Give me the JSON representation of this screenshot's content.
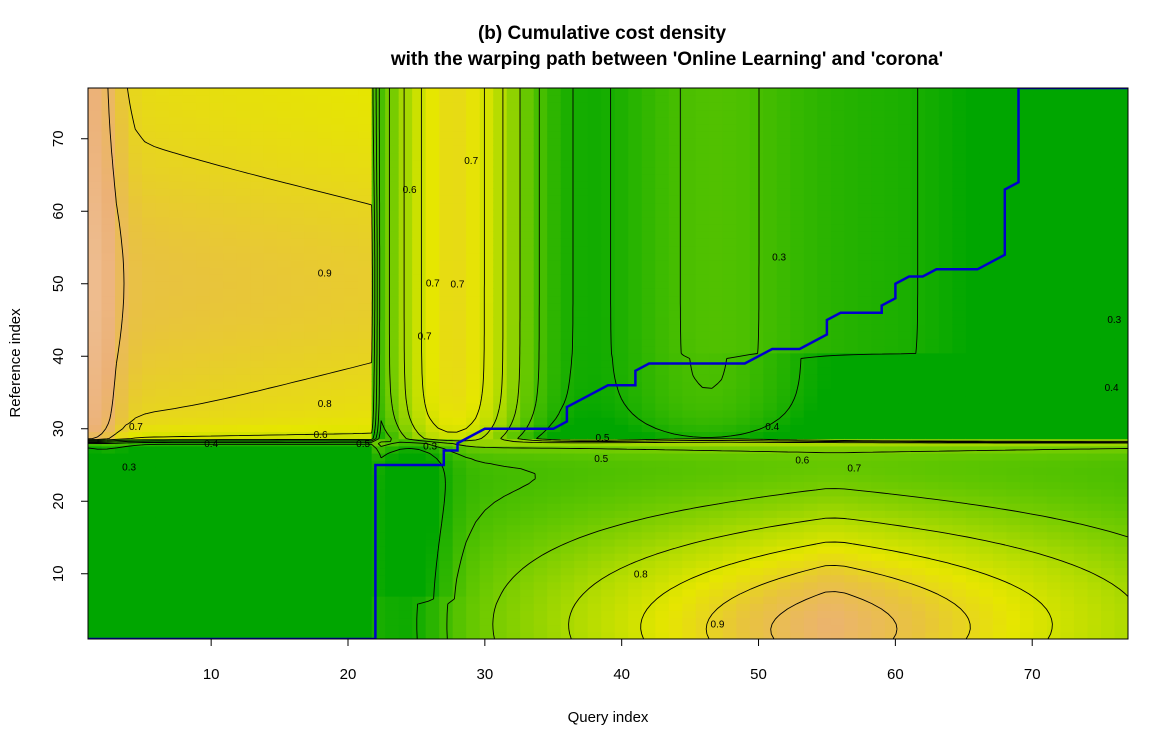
{
  "chart_data": {
    "type": "heatmap",
    "title_line1": "(b) Cumulative cost density",
    "title_line2": "with the warping path between 'Online Learning' and 'corona'",
    "xlabel": "Query index",
    "ylabel": "Reference index",
    "xlim": [
      1,
      77
    ],
    "ylim": [
      1,
      77
    ],
    "x_ticks": [
      10,
      20,
      30,
      40,
      50,
      60,
      70
    ],
    "y_ticks": [
      10,
      20,
      30,
      40,
      50,
      60,
      70
    ],
    "colors": {
      "low": "#00A600",
      "mid": "#E6E600",
      "high": "#ECB176",
      "max": "#F2F2F2",
      "path": "#0000CC"
    },
    "warping_path": [
      [
        1,
        1
      ],
      [
        22,
        1
      ],
      [
        22,
        2
      ],
      [
        22,
        25
      ],
      [
        27,
        25
      ],
      [
        27,
        27
      ],
      [
        28,
        27
      ],
      [
        28,
        28
      ],
      [
        29,
        29
      ],
      [
        30,
        30
      ],
      [
        35,
        30
      ],
      [
        36,
        31
      ],
      [
        36,
        33
      ],
      [
        37,
        34
      ],
      [
        39,
        36
      ],
      [
        41,
        36
      ],
      [
        41,
        38
      ],
      [
        42,
        39
      ],
      [
        49,
        39
      ],
      [
        51,
        41
      ],
      [
        53,
        41
      ],
      [
        55,
        43
      ],
      [
        55,
        45
      ],
      [
        56,
        46
      ],
      [
        59,
        46
      ],
      [
        59,
        47
      ],
      [
        60,
        48
      ],
      [
        60,
        50
      ],
      [
        61,
        51
      ],
      [
        62,
        51
      ],
      [
        63,
        52
      ],
      [
        66,
        52
      ],
      [
        68,
        54
      ],
      [
        68,
        63
      ],
      [
        69,
        64
      ],
      [
        69,
        77
      ],
      [
        77,
        77
      ]
    ],
    "contour_labels": [
      {
        "text": "0.6",
        "x": 24.5,
        "y": 63
      },
      {
        "text": "0.9",
        "x": 18.3,
        "y": 51.5
      },
      {
        "text": "0.8",
        "x": 18.3,
        "y": 33.5
      },
      {
        "text": "0.7",
        "x": 4.5,
        "y": 30.3
      },
      {
        "text": "0.6",
        "x": 18.0,
        "y": 29.2
      },
      {
        "text": "0.5",
        "x": 21.1,
        "y": 28.0
      },
      {
        "text": "0.4",
        "x": 10.0,
        "y": 28.0
      },
      {
        "text": "0.3",
        "x": 26.0,
        "y": 27.6
      },
      {
        "text": "0.3",
        "x": 4.0,
        "y": 24.7
      },
      {
        "text": "0.7",
        "x": 29.0,
        "y": 67.0
      },
      {
        "text": "0.7",
        "x": 26.2,
        "y": 50.1
      },
      {
        "text": "0.7",
        "x": 28.0,
        "y": 50.0
      },
      {
        "text": "0.7",
        "x": 25.6,
        "y": 42.8
      },
      {
        "text": "0.3",
        "x": 51.5,
        "y": 53.7
      },
      {
        "text": "0.3",
        "x": 76.0,
        "y": 45.1
      },
      {
        "text": "0.4",
        "x": 75.8,
        "y": 35.7
      },
      {
        "text": "0.4",
        "x": 51.0,
        "y": 30.3
      },
      {
        "text": "0.5",
        "x": 38.6,
        "y": 28.8
      },
      {
        "text": "0.5",
        "x": 38.5,
        "y": 25.9
      },
      {
        "text": "0.6",
        "x": 53.2,
        "y": 25.7
      },
      {
        "text": "0.7",
        "x": 57.0,
        "y": 24.6
      },
      {
        "text": "0.8",
        "x": 41.4,
        "y": 10.0
      },
      {
        "text": "0.9",
        "x": 47.0,
        "y": 3.1
      }
    ]
  }
}
